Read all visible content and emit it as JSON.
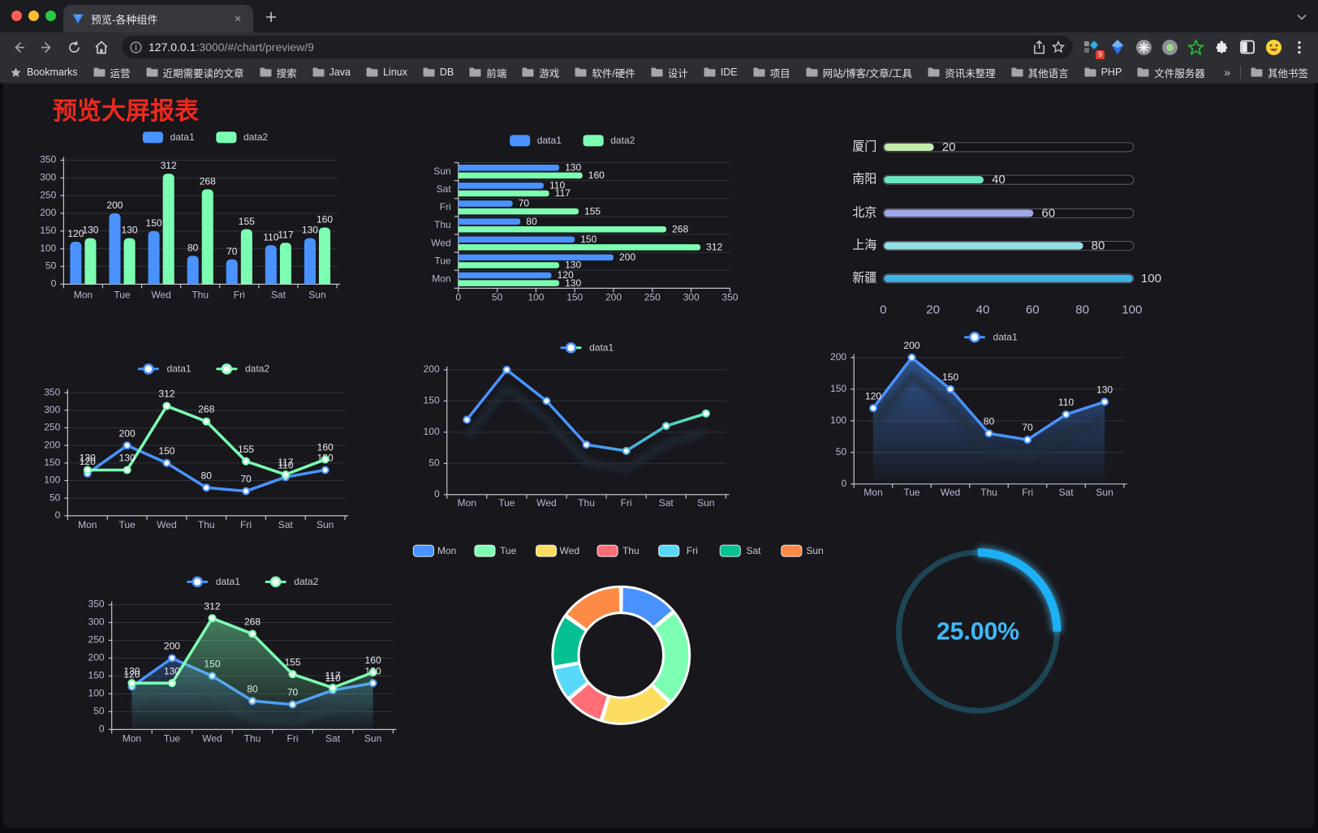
{
  "browser": {
    "tab": {
      "title": "预览-各种组件",
      "close_glyph": "×"
    },
    "url_host": "127.0.0.1",
    "url_rest": ":3000/#/chart/preview/9",
    "bookmarks_label": "Bookmarks",
    "bookmarks": [
      "运营",
      "近期需要读的文章",
      "搜索",
      "Java",
      "Linux",
      "DB",
      "前端",
      "游戏",
      "软件/硬件",
      "设计",
      "IDE",
      "项目",
      "网站/博客/文章/工具",
      "资讯未整理",
      "其他语言",
      "PHP",
      "文件服务器"
    ],
    "bookmarks_overflow": "»",
    "other_bookmarks": "其他书签",
    "extension_badge": "9",
    "extensions": [
      "blocker",
      "blue-gem",
      "command-circle",
      "green-dot-circle",
      "green-star",
      "puzzle",
      "split-panel",
      "emoji-face"
    ]
  },
  "page": {
    "title": "预览大屏报表",
    "title_color": "#f0281c"
  },
  "palette": {
    "blue": "#4992ff",
    "green": "#7cffb2",
    "yellow": "#fddd60",
    "red": "#ff6e76",
    "lightblue": "#58d9f9",
    "teal": "#05c091",
    "orange": "#ff8a45",
    "axis": "#c2c2cc",
    "tick_text": "#b9b8ce",
    "grid": "#32323b",
    "value_label": "#e9e9ef"
  },
  "chart_data": [
    {
      "id": "bar-grouped",
      "type": "bar",
      "categories": [
        "Mon",
        "Tue",
        "Wed",
        "Thu",
        "Fri",
        "Sat",
        "Sun"
      ],
      "series": [
        {
          "name": "data1",
          "color": "#4992ff",
          "values": [
            120,
            200,
            150,
            80,
            70,
            110,
            130
          ]
        },
        {
          "name": "data2",
          "color": "#7cffb2",
          "values": [
            130,
            130,
            312,
            268,
            155,
            117,
            160
          ]
        }
      ],
      "ylim": [
        0,
        350
      ],
      "ystep": 50,
      "legend_position": "top",
      "grid": true,
      "value_labels": true
    },
    {
      "id": "bar-horizontal",
      "type": "bar",
      "orientation": "horizontal",
      "categories": [
        "Mon",
        "Tue",
        "Wed",
        "Thu",
        "Fri",
        "Sat",
        "Sun"
      ],
      "series": [
        {
          "name": "data1",
          "color": "#4992ff",
          "values": [
            120,
            200,
            150,
            80,
            70,
            110,
            130
          ]
        },
        {
          "name": "data2",
          "color": "#7cffb2",
          "values": [
            130,
            130,
            312,
            268,
            155,
            117,
            160
          ]
        }
      ],
      "xlim": [
        0,
        350
      ],
      "xstep": 50,
      "legend_position": "top",
      "value_labels": true
    },
    {
      "id": "progress-bars",
      "type": "bar",
      "subtype": "progress-pills",
      "max": 100,
      "xticks": [
        0,
        20,
        40,
        60,
        80,
        100
      ],
      "items": [
        {
          "label": "厦门",
          "value": 20,
          "color": "#c4ebad"
        },
        {
          "label": "南阳",
          "value": 40,
          "color": "#6be6c1"
        },
        {
          "label": "北京",
          "value": 60,
          "color": "#a0a7e6"
        },
        {
          "label": "上海",
          "value": 80,
          "color": "#96dee8"
        },
        {
          "label": "新疆",
          "value": 100,
          "color": "#3fb1e3"
        }
      ]
    },
    {
      "id": "line-two-series",
      "type": "line",
      "categories": [
        "Mon",
        "Tue",
        "Wed",
        "Thu",
        "Fri",
        "Sat",
        "Sun"
      ],
      "series": [
        {
          "name": "data1",
          "color": "#4992ff",
          "values": [
            120,
            200,
            150,
            80,
            70,
            110,
            130
          ]
        },
        {
          "name": "data2",
          "color": "#7cffb2",
          "values": [
            130,
            130,
            312,
            268,
            155,
            117,
            160
          ]
        }
      ],
      "ylim": [
        0,
        350
      ],
      "ystep": 50,
      "legend_position": "top",
      "value_labels": true
    },
    {
      "id": "line-gradient",
      "type": "line",
      "categories": [
        "Mon",
        "Tue",
        "Wed",
        "Thu",
        "Fri",
        "Sat",
        "Sun"
      ],
      "series": [
        {
          "name": "data1",
          "color": "#4992ff",
          "gradient": [
            "#4992ff",
            "#4992ff",
            "#45c5c8",
            "#7cffb2"
          ],
          "values": [
            120,
            200,
            150,
            80,
            70,
            110,
            130
          ]
        }
      ],
      "ylim": [
        0,
        200
      ],
      "ystep": 50,
      "legend_position": "top",
      "value_labels": false,
      "line_shadow": true
    },
    {
      "id": "area-single",
      "type": "area",
      "categories": [
        "Mon",
        "Tue",
        "Wed",
        "Thu",
        "Fri",
        "Sat",
        "Sun"
      ],
      "series": [
        {
          "name": "data1",
          "color": "#4992ff",
          "area": true,
          "values": [
            120,
            200,
            150,
            80,
            70,
            110,
            130
          ]
        }
      ],
      "ylim": [
        0,
        200
      ],
      "ystep": 50,
      "legend_position": "top",
      "value_labels": true,
      "line_shadow": true
    },
    {
      "id": "area-two-series",
      "type": "area",
      "categories": [
        "Mon",
        "Tue",
        "Wed",
        "Thu",
        "Fri",
        "Sat",
        "Sun"
      ],
      "series": [
        {
          "name": "data1",
          "color": "#4992ff",
          "area": true,
          "values": [
            120,
            200,
            150,
            80,
            70,
            110,
            130
          ]
        },
        {
          "name": "data2",
          "color": "#7cffb2",
          "area": true,
          "values": [
            130,
            130,
            312,
            268,
            155,
            117,
            160
          ]
        }
      ],
      "ylim": [
        0,
        350
      ],
      "ystep": 50,
      "legend_position": "top",
      "value_labels": true,
      "line_shadow": true
    },
    {
      "id": "pie-donut",
      "type": "pie",
      "categories": [
        "Mon",
        "Tue",
        "Wed",
        "Thu",
        "Fri",
        "Sat",
        "Sun"
      ],
      "values": [
        120,
        200,
        150,
        80,
        70,
        110,
        130
      ],
      "colors": [
        "#4992ff",
        "#7cffb2",
        "#fddd60",
        "#ff6e76",
        "#58d9f9",
        "#05c091",
        "#ff8a45"
      ],
      "donut": true,
      "border_color": "#ffffff",
      "legend_position": "top"
    },
    {
      "id": "gauge-ring",
      "type": "gauge",
      "value": 25,
      "max": 100,
      "label": "25.00%",
      "color": "#1fb0f6",
      "track_color": "#1d4554",
      "text_color": "#3fb9f8"
    }
  ]
}
